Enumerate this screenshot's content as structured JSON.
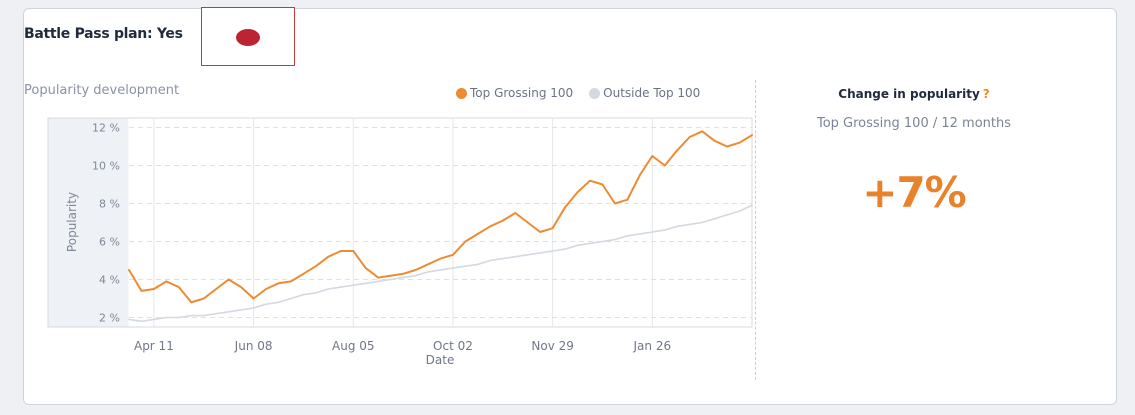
{
  "header": {
    "plan_label": "Battle Pass plan: Yes"
  },
  "flag": {
    "color": "#bd2431",
    "name": "japan-flag"
  },
  "side": {
    "title": "Change in popularity",
    "help": "?",
    "subtitle": "Top Grossing 100 / 12 months",
    "value": "+7%"
  },
  "chart_data": {
    "type": "line",
    "title": "Popularity development",
    "xlabel": "Date",
    "ylabel": "Popularity",
    "ylim": [
      1.5,
      12.5
    ],
    "yticks": [
      2,
      4,
      6,
      8,
      10,
      12
    ],
    "ytick_labels": [
      "2 %",
      "4 %",
      "6 %",
      "8 %",
      "10 %",
      "12 %"
    ],
    "xlim": [
      0,
      50
    ],
    "xticks": [
      2,
      10,
      18,
      26,
      34,
      42
    ],
    "xtick_labels": [
      "Apr 11",
      "Jun 08",
      "Aug 05",
      "Oct 02",
      "Nov 29",
      "Jan 26"
    ],
    "grid": true,
    "legend": "top-right",
    "series": [
      {
        "name": "Top Grossing 100",
        "color": "#ee8a31",
        "x": [
          0,
          1,
          2,
          3,
          4,
          5,
          6,
          7,
          8,
          9,
          10,
          11,
          12,
          13,
          14,
          15,
          16,
          17,
          18,
          19,
          20,
          21,
          22,
          23,
          24,
          25,
          26,
          27,
          28,
          29,
          30,
          31,
          32,
          33,
          34,
          35,
          36,
          37,
          38,
          39,
          40,
          41,
          42,
          43,
          44,
          45,
          46,
          47,
          48,
          49,
          50
        ],
        "values": [
          4.5,
          3.4,
          3.5,
          3.9,
          3.6,
          2.8,
          3.0,
          3.5,
          4.0,
          3.6,
          3.0,
          3.5,
          3.8,
          3.9,
          4.3,
          4.7,
          5.2,
          5.5,
          5.5,
          4.6,
          4.1,
          4.2,
          4.3,
          4.5,
          4.8,
          5.1,
          5.3,
          6.0,
          6.4,
          6.8,
          7.1,
          7.5,
          7.0,
          6.5,
          6.7,
          7.8,
          8.6,
          9.2,
          9.0,
          8.0,
          8.2,
          9.5,
          10.5,
          10.0,
          10.8,
          11.5,
          11.8,
          11.3,
          11.0,
          11.2,
          11.6
        ]
      },
      {
        "name": "Outside Top 100",
        "color": "#d3d9e2",
        "x": [
          0,
          1,
          2,
          3,
          4,
          5,
          6,
          7,
          8,
          9,
          10,
          11,
          12,
          13,
          14,
          15,
          16,
          17,
          18,
          19,
          20,
          21,
          22,
          23,
          24,
          25,
          26,
          27,
          28,
          29,
          30,
          31,
          32,
          33,
          34,
          35,
          36,
          37,
          38,
          39,
          40,
          41,
          42,
          43,
          44,
          45,
          46,
          47,
          48,
          49,
          50
        ],
        "values": [
          1.9,
          1.8,
          1.9,
          2.0,
          2.0,
          2.1,
          2.1,
          2.2,
          2.3,
          2.4,
          2.5,
          2.7,
          2.8,
          3.0,
          3.2,
          3.3,
          3.5,
          3.6,
          3.7,
          3.8,
          3.9,
          4.0,
          4.1,
          4.2,
          4.4,
          4.5,
          4.6,
          4.7,
          4.8,
          5.0,
          5.1,
          5.2,
          5.3,
          5.4,
          5.5,
          5.6,
          5.8,
          5.9,
          6.0,
          6.1,
          6.3,
          6.4,
          6.5,
          6.6,
          6.8,
          6.9,
          7.0,
          7.2,
          7.4,
          7.6,
          7.9
        ]
      }
    ]
  }
}
